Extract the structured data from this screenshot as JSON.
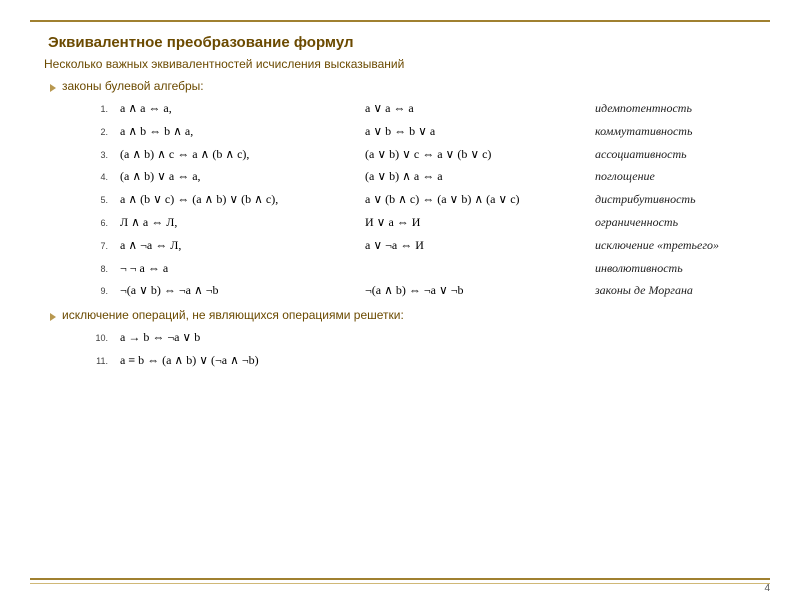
{
  "colors": {
    "accent": "#a08030",
    "heading": "#6b4a00",
    "background": "#ffffff"
  },
  "title": "Эквивалентное преобразование формул",
  "subtitle": "Несколько важных эквивалентностей исчисления высказываний",
  "section1": "законы булевой алгебры:",
  "section2": "исключение операций, не являющихся операциями решетки:",
  "rows": [
    {
      "n": "1.",
      "c1": "a ∧ a  ⇔  a,",
      "c2": "a ∨ a  ⇔  a",
      "law": "идемпотентность"
    },
    {
      "n": "2.",
      "c1": "a ∧ b  ⇔  b ∧ a,",
      "c2": "a ∨ b  ⇔  b ∨ a",
      "law": "коммутативность"
    },
    {
      "n": "3.",
      "c1": "(a ∧ b) ∧ c  ⇔  a ∧ (b ∧ c),",
      "c2": "(a ∨ b) ∨ c  ⇔  a ∨ (b ∨ c)",
      "law": "ассоциативность"
    },
    {
      "n": "4.",
      "c1": "(a ∧ b) ∨ a  ⇔  a,",
      "c2": "(a ∨ b) ∧ a  ⇔  a",
      "law": "поглощение"
    },
    {
      "n": "5.",
      "c1": "a ∧ (b ∨ c)  ⇔  (a ∧ b) ∨ (b ∧ c),",
      "c2": "a ∨ (b ∧ c)  ⇔  (a ∨ b) ∧ (a ∨ c)",
      "law": "дистрибутивность"
    },
    {
      "n": "6.",
      "c1": "Л ∧ a  ⇔  Л,",
      "c2": "И ∨ a  ⇔  И",
      "law": "ограниченность"
    },
    {
      "n": "7.",
      "c1": "a ∧ ¬a  ⇔  Л,",
      "c2": "a ∨ ¬a  ⇔  И",
      "law": "исключение «третьего»"
    },
    {
      "n": "8.",
      "c1": "¬ ¬ a  ⇔  a",
      "c2": "",
      "law": "инволютивность"
    },
    {
      "n": "9.",
      "c1": "¬(a ∨ b)  ⇔  ¬a ∧ ¬b",
      "c2": "¬(a ∧ b)  ⇔  ¬a ∨ ¬b",
      "law": "законы де Моргана"
    }
  ],
  "rows2": [
    {
      "n": "10.",
      "c1": "a → b  ⇔  ¬a ∨ b",
      "c2": "",
      "law": ""
    },
    {
      "n": "11.",
      "c1": "a ≡ b  ⇔  (a ∧ b) ∨ (¬a ∧ ¬b)",
      "c2": "",
      "law": ""
    }
  ],
  "page_number": "4"
}
